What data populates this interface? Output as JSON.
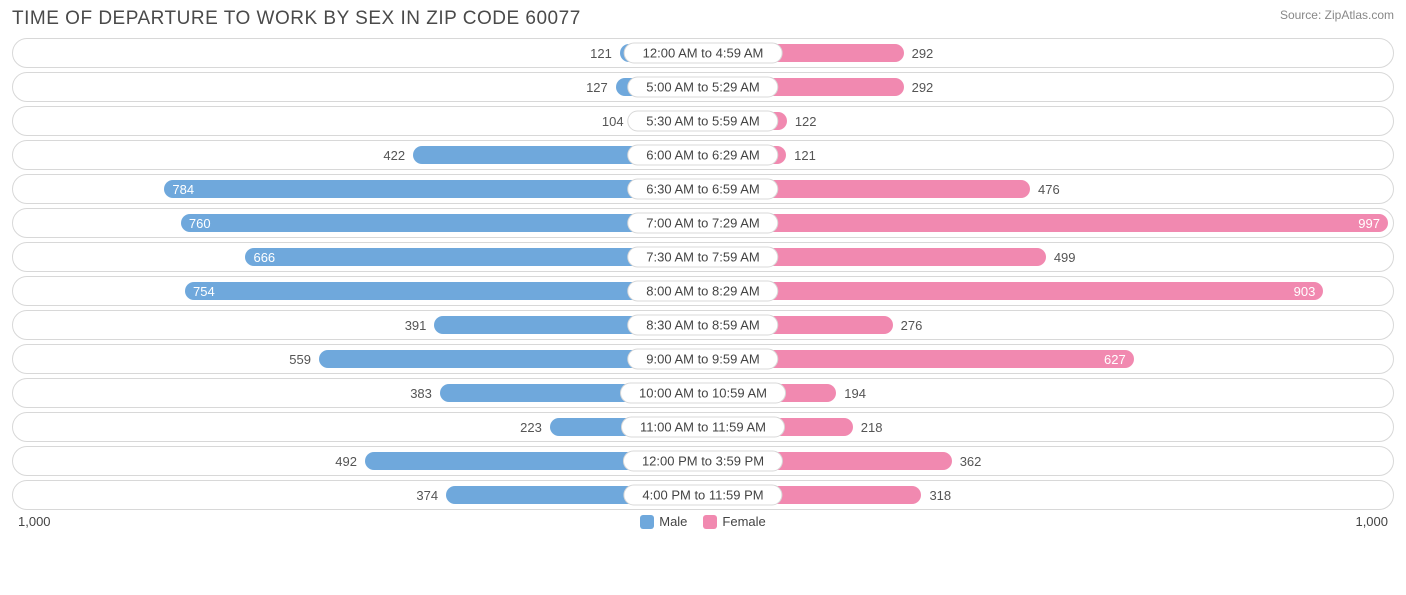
{
  "title": "TIME OF DEPARTURE TO WORK BY SEX IN ZIP CODE 60077",
  "source": "Source: ZipAtlas.com",
  "axis_max": 1000,
  "axis_label_left": "1,000",
  "axis_label_right": "1,000",
  "value_inside_threshold": 560,
  "colors": {
    "male": "#6fa8dc",
    "female": "#f189b0",
    "row_border": "#d8d8d8",
    "text": "#444444",
    "value_out": "#555555",
    "value_in": "#ffffff",
    "title_color": "#4a4a4a",
    "source_color": "#888888",
    "background": "#ffffff"
  },
  "legend": {
    "male_label": "Male",
    "female_label": "Female"
  },
  "rows": [
    {
      "category": "12:00 AM to 4:59 AM",
      "male": 121,
      "female": 292
    },
    {
      "category": "5:00 AM to 5:29 AM",
      "male": 127,
      "female": 292
    },
    {
      "category": "5:30 AM to 5:59 AM",
      "male": 104,
      "female": 122
    },
    {
      "category": "6:00 AM to 6:29 AM",
      "male": 422,
      "female": 121
    },
    {
      "category": "6:30 AM to 6:59 AM",
      "male": 784,
      "female": 476
    },
    {
      "category": "7:00 AM to 7:29 AM",
      "male": 760,
      "female": 997
    },
    {
      "category": "7:30 AM to 7:59 AM",
      "male": 666,
      "female": 499
    },
    {
      "category": "8:00 AM to 8:29 AM",
      "male": 754,
      "female": 903
    },
    {
      "category": "8:30 AM to 8:59 AM",
      "male": 391,
      "female": 276
    },
    {
      "category": "9:00 AM to 9:59 AM",
      "male": 559,
      "female": 627
    },
    {
      "category": "10:00 AM to 10:59 AM",
      "male": 383,
      "female": 194
    },
    {
      "category": "11:00 AM to 11:59 AM",
      "male": 223,
      "female": 218
    },
    {
      "category": "12:00 PM to 3:59 PM",
      "male": 492,
      "female": 362
    },
    {
      "category": "4:00 PM to 11:59 PM",
      "male": 374,
      "female": 318
    }
  ]
}
